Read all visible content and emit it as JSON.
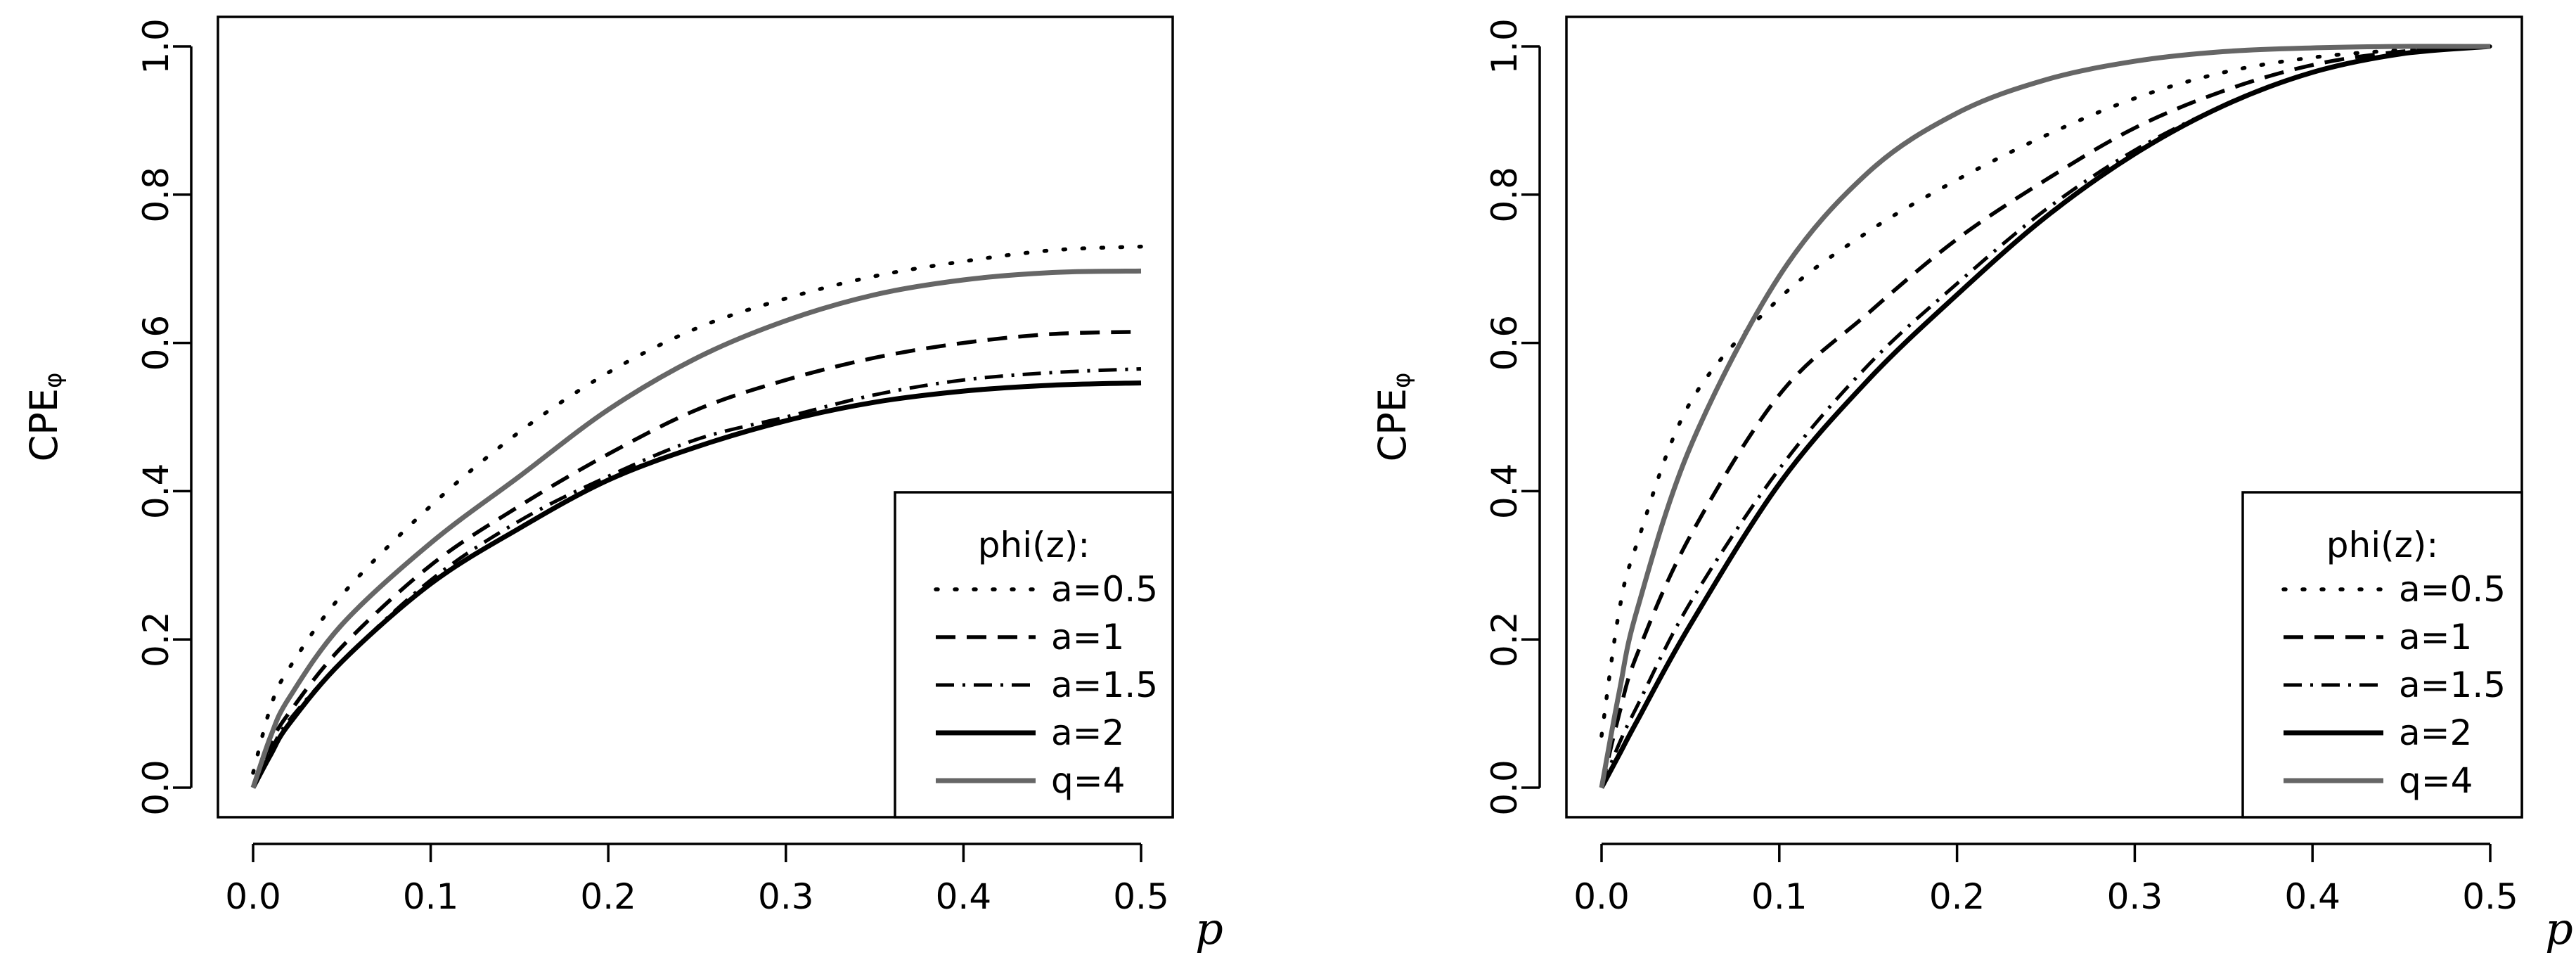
{
  "chart_data": [
    {
      "type": "line",
      "title": "",
      "xlabel": "p",
      "ylabel": "CPE",
      "ylabel_subscript": "φ",
      "xlim": [
        0.0,
        0.5
      ],
      "ylim": [
        0.0,
        1.0
      ],
      "xticks": [
        "0.0",
        "0.1",
        "0.2",
        "0.3",
        "0.4",
        "0.5"
      ],
      "yticks": [
        "0.0",
        "0.2",
        "0.4",
        "0.6",
        "0.8",
        "1.0"
      ],
      "grid": false,
      "legend_position": "bottom-right",
      "legend_title": "phi(z):",
      "x": [
        0.0,
        0.01,
        0.02,
        0.05,
        0.1,
        0.15,
        0.2,
        0.25,
        0.3,
        0.35,
        0.4,
        0.45,
        0.5
      ],
      "series": [
        {
          "name": "a=0.5",
          "style": "dotted",
          "color": "#000000",
          "values": [
            0.02,
            0.11,
            0.16,
            0.26,
            0.38,
            0.48,
            0.56,
            0.62,
            0.66,
            0.69,
            0.71,
            0.725,
            0.73
          ]
        },
        {
          "name": "a=1",
          "style": "dashed",
          "color": "#000000",
          "values": [
            0.0,
            0.06,
            0.1,
            0.19,
            0.3,
            0.38,
            0.45,
            0.51,
            0.55,
            0.58,
            0.6,
            0.612,
            0.615
          ]
        },
        {
          "name": "a=1.5",
          "style": "dashdot",
          "color": "#000000",
          "values": [
            0.0,
            0.05,
            0.09,
            0.17,
            0.28,
            0.36,
            0.42,
            0.47,
            0.5,
            0.53,
            0.55,
            0.56,
            0.565
          ]
        },
        {
          "name": "a=2",
          "style": "solid",
          "color": "#000000",
          "values": [
            0.0,
            0.045,
            0.085,
            0.17,
            0.275,
            0.35,
            0.415,
            0.46,
            0.495,
            0.52,
            0.535,
            0.543,
            0.546
          ]
        },
        {
          "name": "q=4",
          "style": "solid",
          "color": "#666666",
          "values": [
            0.0,
            0.07,
            0.12,
            0.22,
            0.33,
            0.42,
            0.51,
            0.58,
            0.63,
            0.665,
            0.685,
            0.695,
            0.697
          ]
        }
      ]
    },
    {
      "type": "line",
      "title": "",
      "xlabel": "p",
      "ylabel": "CPE",
      "ylabel_subscript": "φ",
      "xlim": [
        0.0,
        0.5
      ],
      "ylim": [
        0.0,
        1.0
      ],
      "xticks": [
        "0.0",
        "0.1",
        "0.2",
        "0.3",
        "0.4",
        "0.5"
      ],
      "yticks": [
        "0.0",
        "0.2",
        "0.4",
        "0.6",
        "0.8",
        "1.0"
      ],
      "grid": false,
      "legend_position": "bottom-right",
      "legend_title": "phi(z):",
      "x": [
        0.0,
        0.01,
        0.02,
        0.05,
        0.1,
        0.15,
        0.2,
        0.25,
        0.3,
        0.35,
        0.4,
        0.45,
        0.5
      ],
      "series": [
        {
          "name": "a=0.5",
          "style": "dotted",
          "color": "#000000",
          "values": [
            0.07,
            0.24,
            0.33,
            0.52,
            0.66,
            0.75,
            0.82,
            0.88,
            0.93,
            0.965,
            0.985,
            0.995,
            1.0
          ]
        },
        {
          "name": "a=1",
          "style": "dashed",
          "color": "#000000",
          "values": [
            0.0,
            0.1,
            0.18,
            0.34,
            0.53,
            0.64,
            0.74,
            0.82,
            0.89,
            0.94,
            0.975,
            0.993,
            1.0
          ]
        },
        {
          "name": "a=1.5",
          "style": "dashdot",
          "color": "#000000",
          "values": [
            0.0,
            0.06,
            0.11,
            0.25,
            0.43,
            0.57,
            0.68,
            0.78,
            0.86,
            0.92,
            0.965,
            0.99,
            1.0
          ]
        },
        {
          "name": "a=2",
          "style": "solid",
          "color": "#000000",
          "values": [
            0.0,
            0.045,
            0.09,
            0.22,
            0.41,
            0.55,
            0.665,
            0.77,
            0.855,
            0.92,
            0.965,
            0.99,
            1.0
          ]
        },
        {
          "name": "q=4",
          "style": "solid",
          "color": "#666666",
          "values": [
            0.0,
            0.13,
            0.24,
            0.46,
            0.69,
            0.83,
            0.91,
            0.955,
            0.98,
            0.993,
            0.998,
            1.0,
            1.0
          ]
        }
      ]
    }
  ]
}
